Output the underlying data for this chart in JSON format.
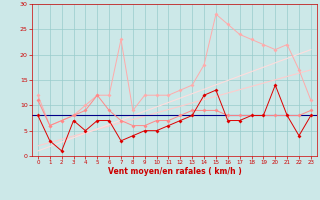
{
  "xlabel": "Vent moyen/en rafales ( km/h )",
  "background_color": "#cce8e8",
  "grid_color": "#99cccc",
  "text_color": "#cc0000",
  "xlim": [
    -0.5,
    23.5
  ],
  "ylim": [
    0,
    30
  ],
  "xticks": [
    0,
    1,
    2,
    3,
    4,
    5,
    6,
    7,
    8,
    9,
    10,
    11,
    12,
    13,
    14,
    15,
    16,
    17,
    18,
    19,
    20,
    21,
    22,
    23
  ],
  "yticks": [
    0,
    5,
    10,
    15,
    20,
    25,
    30
  ],
  "line1_x": [
    0,
    1,
    2,
    3,
    4,
    5,
    6,
    7,
    8,
    9,
    10,
    11,
    12,
    13,
    14,
    15,
    16,
    17,
    18,
    19,
    20,
    21,
    22,
    23
  ],
  "line1_y": [
    8,
    3,
    1,
    7,
    5,
    7,
    7,
    3,
    4,
    5,
    5,
    6,
    7,
    8,
    12,
    13,
    7,
    7,
    8,
    8,
    14,
    8,
    4,
    8
  ],
  "line1_color": "#dd0000",
  "line2_x": [
    0,
    1,
    2,
    3,
    4,
    5,
    6,
    7,
    8,
    9,
    10,
    11,
    12,
    13,
    14,
    15,
    16,
    17,
    18,
    19,
    20,
    21,
    22,
    23
  ],
  "line2_y": [
    11,
    6,
    7,
    8,
    9,
    12,
    9,
    7,
    6,
    6,
    7,
    7,
    8,
    9,
    9,
    9,
    8,
    8,
    8,
    8,
    8,
    8,
    8,
    9
  ],
  "line2_color": "#ff8888",
  "line3_x": [
    0,
    1,
    2,
    3,
    4,
    5,
    6,
    7,
    8,
    9,
    10,
    11,
    12,
    13,
    14,
    15,
    16,
    17,
    18,
    19,
    20,
    21,
    22,
    23
  ],
  "line3_y": [
    12,
    6,
    7,
    8,
    10,
    12,
    12,
    23,
    9,
    12,
    12,
    12,
    13,
    14,
    18,
    28,
    26,
    24,
    23,
    22,
    21,
    22,
    17,
    11
  ],
  "line3_color": "#ffaaaa",
  "trend1_x": [
    0,
    23
  ],
  "trend1_y": [
    2,
    17
  ],
  "trend1_color": "#ffcccc",
  "trend2_x": [
    0,
    23
  ],
  "trend2_y": [
    1,
    21
  ],
  "trend2_color": "#ffdddd",
  "hline_y": 8,
  "hline_color": "#000088"
}
